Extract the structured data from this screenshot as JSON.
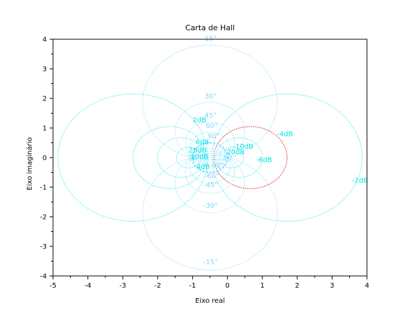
{
  "chart_data": {
    "type": "line",
    "title": "Carta de Hall",
    "xlabel": "Eixo real",
    "ylabel": "Eixo imaginário",
    "xlim": [
      -5,
      4
    ],
    "ylim": [
      -4,
      4
    ],
    "xticks": [
      "-5",
      "-4",
      "-3",
      "-2",
      "-1",
      "0",
      "1",
      "2",
      "3",
      "4"
    ],
    "yticks": [
      "-4",
      "-3",
      "-2",
      "-1",
      "0",
      "1",
      "2",
      "3",
      "4"
    ],
    "grid": false,
    "colors": {
      "gain": "#00e5e5",
      "phase": "#7fd8ff",
      "highlight": "#e00000",
      "axes": "#000000"
    },
    "gain_circles_db": [
      -20,
      -10,
      -6,
      -4,
      -2,
      2,
      4,
      6,
      10,
      20
    ],
    "highlight_db": -4,
    "phase_circles_deg": [
      15,
      30,
      45,
      60,
      90,
      -15,
      -30,
      -45,
      -60,
      -90
    ],
    "gain_labels": [
      {
        "text": "-4dB",
        "x": 1.65,
        "y": 0.72
      },
      {
        "text": "-2dB",
        "x": 3.8,
        "y": -0.85
      },
      {
        "text": "-6dB",
        "x": 1.05,
        "y": -0.15
      },
      {
        "text": "-10dB",
        "x": 0.45,
        "y": 0.3
      },
      {
        "text": "-20dB",
        "x": 0.2,
        "y": 0.12
      },
      {
        "text": "2dB",
        "x": -0.8,
        "y": 1.2
      },
      {
        "text": "6dB",
        "x": -0.72,
        "y": 0.45
      },
      {
        "text": "20dB",
        "x": -0.85,
        "y": 0.18
      },
      {
        "text": "10dB",
        "x": -0.8,
        "y": -0.05
      },
      {
        "text": "4dB",
        "x": -0.7,
        "y": -0.38
      }
    ],
    "phase_labels": [
      {
        "text": "15°",
        "x": -0.48,
        "y": 3.95
      },
      {
        "text": "30°",
        "x": -0.48,
        "y": 2.0
      },
      {
        "text": "45°",
        "x": -0.48,
        "y": 1.35
      },
      {
        "text": "60°",
        "x": -0.45,
        "y": 1.0
      },
      {
        "text": "90°",
        "x": -0.4,
        "y": 0.65
      },
      {
        "text": "-90°",
        "x": -0.3,
        "y": -0.35
      },
      {
        "text": "-60°",
        "x": -0.45,
        "y": -0.7
      },
      {
        "text": "-45°",
        "x": -0.48,
        "y": -1.0
      },
      {
        "text": "-30°",
        "x": -0.48,
        "y": -1.7
      },
      {
        "text": "-15°",
        "x": -0.48,
        "y": -3.6
      }
    ]
  }
}
